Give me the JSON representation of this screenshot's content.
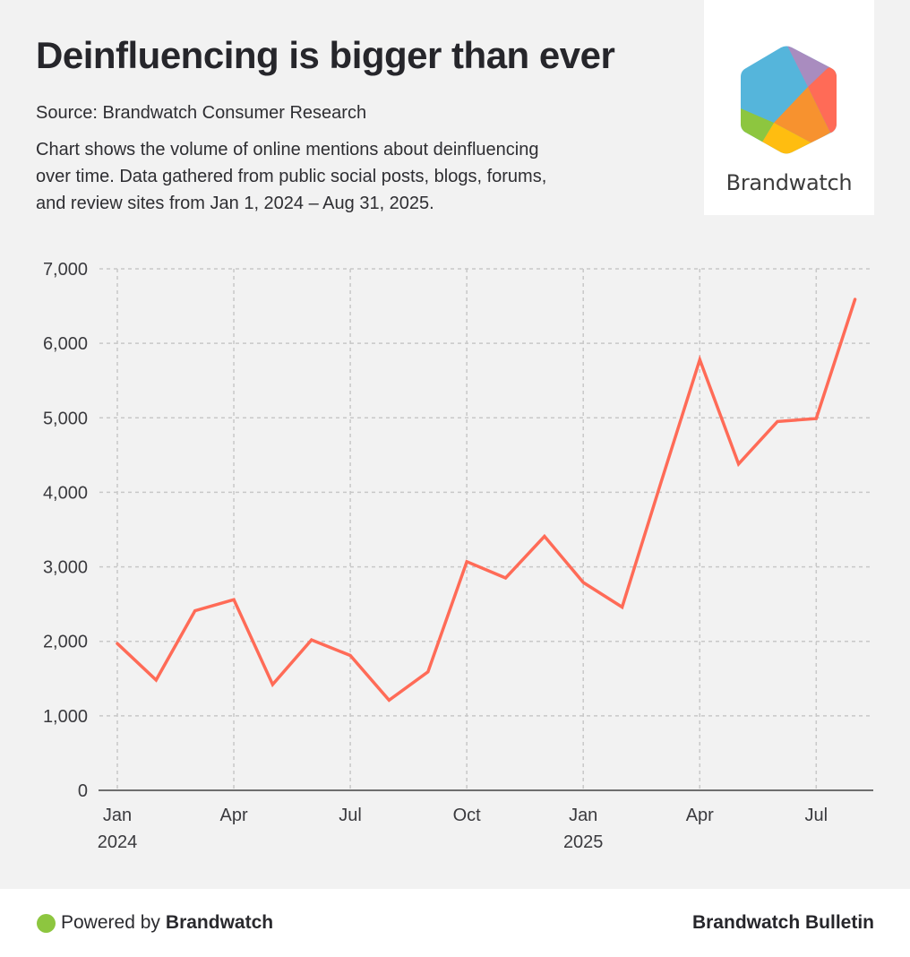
{
  "header": {
    "title": "Deinfluencing is bigger than ever",
    "source": "Source: Brandwatch Consumer Research",
    "description_lines": [
      "Chart shows the volume of online mentions about deinfluencing",
      "over time. Data gathered from public social posts, blogs, forums,",
      "and review sites from Jan 1, 2024 – Aug 31, 2025."
    ]
  },
  "logo": {
    "text": "Brandwatch",
    "icon": "brandwatch-hexagon-logo",
    "colors": {
      "blue": "#55b5db",
      "purple": "#a98cbf",
      "red": "#ff6b57",
      "orange": "#f7922f",
      "yellow": "#ffbd10",
      "green": "#8dc63f"
    }
  },
  "footer": {
    "powered_prefix": "Powered by",
    "powered_brand": "Brandwatch",
    "right_label": "Brandwatch Bulletin",
    "dot_color": "#8dc63f"
  },
  "chart_data": {
    "type": "line",
    "title": "Deinfluencing is bigger than ever",
    "xlabel": "",
    "ylabel": "",
    "ylim": [
      0,
      7000
    ],
    "grid": true,
    "line_color": "#ff6b57",
    "x": [
      "2024-01",
      "2024-02",
      "2024-03",
      "2024-04",
      "2024-05",
      "2024-06",
      "2024-07",
      "2024-08",
      "2024-09",
      "2024-10",
      "2024-11",
      "2024-12",
      "2025-01",
      "2025-02",
      "2025-03",
      "2025-04",
      "2025-05",
      "2025-06",
      "2025-07",
      "2025-08"
    ],
    "series": [
      {
        "name": "Mentions",
        "values": [
          1970,
          1480,
          2410,
          2560,
          1420,
          2020,
          1810,
          1210,
          1590,
          3070,
          2850,
          3410,
          2790,
          2460,
          4130,
          5780,
          4380,
          4950,
          4990,
          6590
        ]
      }
    ],
    "y_ticks": [
      {
        "value": 0,
        "label": "0"
      },
      {
        "value": 1000,
        "label": "1,000"
      },
      {
        "value": 2000,
        "label": "2,000"
      },
      {
        "value": 3000,
        "label": "3,000"
      },
      {
        "value": 4000,
        "label": "4,000"
      },
      {
        "value": 5000,
        "label": "5,000"
      },
      {
        "value": 6000,
        "label": "6,000"
      },
      {
        "value": 7000,
        "label": "7,000"
      }
    ],
    "x_ticks": [
      {
        "index": 0,
        "label": "Jan",
        "sublabel": "2024"
      },
      {
        "index": 3,
        "label": "Apr",
        "sublabel": ""
      },
      {
        "index": 6,
        "label": "Jul",
        "sublabel": ""
      },
      {
        "index": 9,
        "label": "Oct",
        "sublabel": ""
      },
      {
        "index": 12,
        "label": "Jan",
        "sublabel": "2025"
      },
      {
        "index": 15,
        "label": "Apr",
        "sublabel": ""
      },
      {
        "index": 18,
        "label": "Jul",
        "sublabel": ""
      }
    ]
  }
}
